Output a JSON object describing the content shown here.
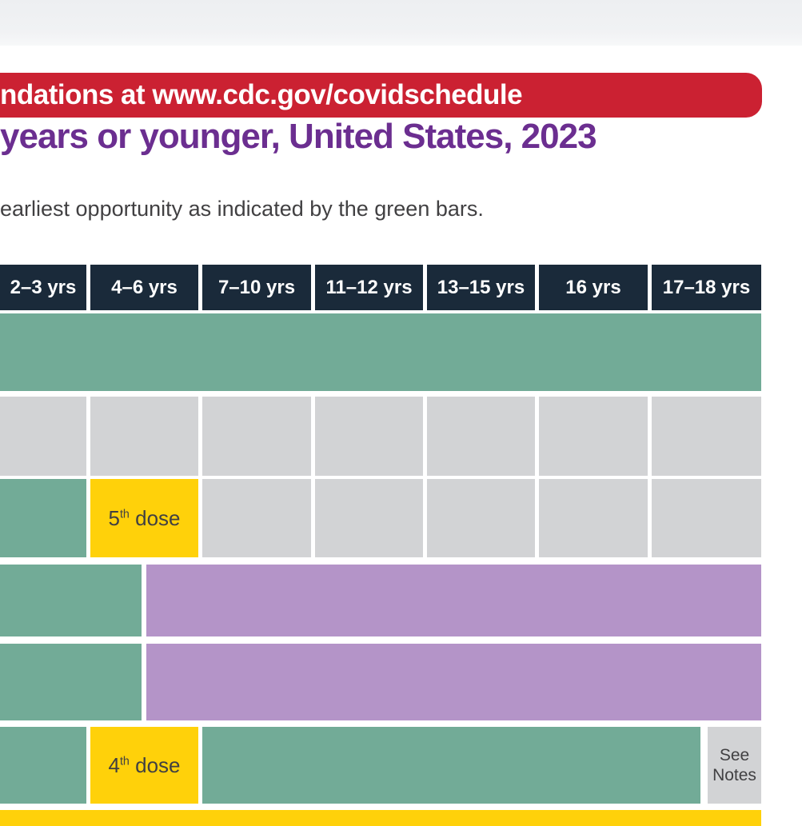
{
  "banner": {
    "text": "ndations at www.cdc.gov/covidschedule"
  },
  "title": "years or younger, United States, 2023",
  "subtitle": "earliest opportunity as indicated by the green bars.",
  "table": {
    "columns": [
      "2–3 yrs",
      "4–6 yrs",
      "7–10 yrs",
      "11–12 yrs",
      "13–15 yrs",
      "16 yrs",
      "17–18 yrs"
    ],
    "cells": {
      "dose5": {
        "num": "5",
        "sup": "th",
        "rest": " dose",
        "plain": "5th dose"
      },
      "dose4": {
        "num": "4",
        "sup": "th",
        "rest": " dose",
        "plain": "4th dose"
      },
      "see_notes_line1": "See",
      "see_notes_line2": "Notes"
    },
    "rows": [
      {
        "name": "row-1",
        "cells": [
          {
            "color": "green",
            "span": "2–3 yrs through 17–18 yrs",
            "label": ""
          }
        ]
      },
      {
        "name": "row-2",
        "cells": [
          {
            "color": "gray",
            "col": "2–3 yrs"
          },
          {
            "color": "gray",
            "col": "4–6 yrs"
          },
          {
            "color": "gray",
            "col": "7–10 yrs"
          },
          {
            "color": "gray",
            "col": "11–12 yrs"
          },
          {
            "color": "gray",
            "col": "13–15 yrs"
          },
          {
            "color": "gray",
            "col": "16 yrs"
          },
          {
            "color": "gray",
            "col": "17–18 yrs"
          }
        ]
      },
      {
        "name": "row-3",
        "cells": [
          {
            "color": "green",
            "col": "2–3 yrs"
          },
          {
            "color": "gold",
            "col": "4–6 yrs",
            "label": "5th dose"
          },
          {
            "color": "gray",
            "col": "7–10 yrs"
          },
          {
            "color": "gray",
            "col": "11–12 yrs"
          },
          {
            "color": "gray",
            "col": "13–15 yrs"
          },
          {
            "color": "gray",
            "col": "16 yrs"
          },
          {
            "color": "gray",
            "col": "17–18 yrs"
          }
        ]
      },
      {
        "name": "row-4",
        "cells": [
          {
            "color": "green",
            "span": "2–3 yrs to mid 4–6 yrs"
          },
          {
            "color": "purple",
            "span": "mid 4–6 yrs through 17–18 yrs"
          }
        ]
      },
      {
        "name": "row-5",
        "cells": [
          {
            "color": "green",
            "span": "2–3 yrs to mid 4–6 yrs"
          },
          {
            "color": "purple",
            "span": "mid 4–6 yrs through 17–18 yrs"
          }
        ]
      },
      {
        "name": "row-6",
        "cells": [
          {
            "color": "green",
            "col": "2–3 yrs"
          },
          {
            "color": "gold",
            "col": "4–6 yrs",
            "label": "4th dose"
          },
          {
            "color": "green",
            "span": "7–10 yrs through 16 yrs"
          },
          {
            "color": "gray",
            "col": "17–18 yrs",
            "label": "See Notes"
          }
        ]
      },
      {
        "name": "row-7-partial",
        "cells": [
          {
            "color": "gold",
            "span": "2–3 yrs through 17–18 yrs (cut off at bottom)"
          }
        ]
      }
    ]
  },
  "colors": {
    "banner_red": "#cb2132",
    "title_purple": "#6b2e90",
    "body_text": "#414042",
    "header_navy": "#1a2a3a",
    "recommended_green": "#72ab97",
    "no_recommendation_gray": "#d2d3d5",
    "dose_gold": "#ffd10a",
    "high_risk_purple": "#b494c8",
    "top_band_gray": "#eff0f2"
  }
}
